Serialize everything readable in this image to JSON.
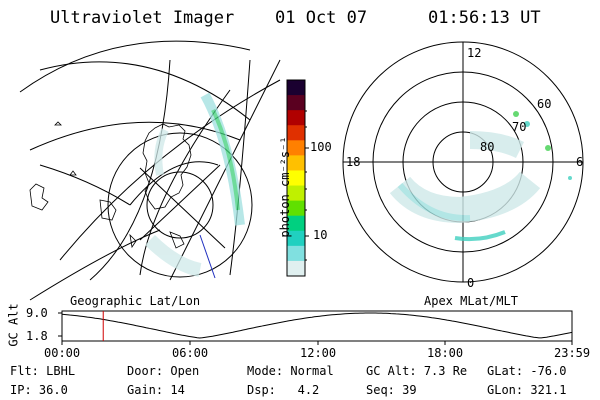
{
  "header": {
    "title": "Ultraviolet Imager",
    "date": "01 Oct 07",
    "time": "01:56:13 UT"
  },
  "left_map": {
    "caption": "Geographic Lat/Lon"
  },
  "right_map": {
    "caption": "Apex MLat/MLT",
    "mlt_labels": [
      "12",
      "18",
      "6",
      "0"
    ],
    "lat_labels": [
      "60",
      "70",
      "80"
    ]
  },
  "colorbar": {
    "unit_label": "photon cm⁻²s⁻¹",
    "ticks": [
      "100",
      "10"
    ],
    "colors": [
      "#1a0030",
      "#5a0020",
      "#b00000",
      "#e03000",
      "#ff8000",
      "#ffc000",
      "#ffff00",
      "#c0f000",
      "#60e000",
      "#00d080",
      "#20d0c0",
      "#80e0e0",
      "#e0f0f0"
    ]
  },
  "altitude_plot": {
    "ylabel": "GC Alt",
    "y_ticks": [
      "9.0",
      "1.8"
    ],
    "x_ticks": [
      "00:00",
      "06:00",
      "12:00",
      "18:00",
      "23:59"
    ],
    "marker_color": "#d00000",
    "marker_time_hours": 1.94
  },
  "footer": {
    "row1": [
      {
        "key": "Flt:",
        "value": "LBHL"
      },
      {
        "key": "Door:",
        "value": "Open"
      },
      {
        "key": "Mode:",
        "value": "Normal"
      },
      {
        "key": "GC Alt:",
        "value": "7.3 Re"
      },
      {
        "key": "GLat:",
        "value": "-76.0"
      }
    ],
    "row2": [
      {
        "key": "IP:",
        "value": "36.0"
      },
      {
        "key": "Gain:",
        "value": "14"
      },
      {
        "key": "Dsp:",
        "value": "4.2"
      },
      {
        "key": "Seq:",
        "value": "39"
      },
      {
        "key": "GLon:",
        "value": "321.1"
      }
    ]
  }
}
